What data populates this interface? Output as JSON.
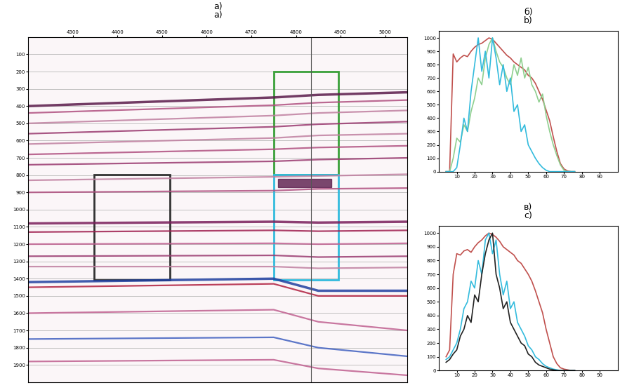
{
  "chart_data": [
    {
      "type": "section",
      "labels": [
        "а)",
        "a)"
      ],
      "xlim": [
        4200,
        5050
      ],
      "xticks": [
        4300,
        4400,
        4500,
        4600,
        4700,
        4800,
        4900,
        5000
      ],
      "ylim": [
        2000,
        0
      ],
      "yticks": [
        100,
        200,
        300,
        400,
        500,
        600,
        700,
        800,
        900,
        1000,
        1100,
        1200,
        1300,
        1400,
        1500,
        1600,
        1700,
        1800,
        1900
      ],
      "grid": true,
      "reflector_x": [
        4200,
        4750,
        4850,
        5050
      ],
      "reflectors": [
        {
          "t": [
            400,
            350,
            335,
            320
          ],
          "color": "#5a1a4a"
        },
        {
          "t": [
            440,
            395,
            380,
            365
          ],
          "color": "#b05080"
        },
        {
          "t": [
            500,
            455,
            440,
            425
          ],
          "color": "#c080a0"
        },
        {
          "t": [
            560,
            520,
            505,
            490
          ],
          "color": "#9a3a70"
        },
        {
          "t": [
            620,
            585,
            570,
            560
          ],
          "color": "#c080a0"
        },
        {
          "t": [
            680,
            650,
            640,
            630
          ],
          "color": "#b05080"
        },
        {
          "t": [
            740,
            720,
            710,
            700
          ],
          "color": "#9a3a70"
        },
        {
          "t": [
            830,
            810,
            805,
            795
          ],
          "color": "#c080a0"
        },
        {
          "t": [
            900,
            890,
            880,
            875
          ],
          "color": "#b05080"
        },
        {
          "t": [
            1080,
            1070,
            1075,
            1070
          ],
          "color": "#7a1f5c"
        },
        {
          "t": [
            1130,
            1120,
            1125,
            1120
          ],
          "color": "#a02050"
        },
        {
          "t": [
            1200,
            1195,
            1200,
            1195
          ],
          "color": "#c06090"
        },
        {
          "t": [
            1270,
            1265,
            1275,
            1270
          ],
          "color": "#9a3a70"
        },
        {
          "t": [
            1330,
            1330,
            1340,
            1335
          ],
          "color": "#c080a0"
        },
        {
          "t": [
            1420,
            1400,
            1470,
            1470
          ],
          "color": "#2040a0"
        },
        {
          "t": [
            1450,
            1430,
            1500,
            1500
          ],
          "color": "#b02040"
        },
        {
          "t": [
            1600,
            1580,
            1650,
            1700
          ],
          "color": "#c06090"
        },
        {
          "t": [
            1750,
            1740,
            1800,
            1850
          ],
          "color": "#4060c0"
        },
        {
          "t": [
            1880,
            1870,
            1920,
            1960
          ],
          "color": "#c06090"
        }
      ],
      "anomaly": {
        "x": [
          4760,
          4880
        ],
        "t": [
          820,
          870
        ],
        "color": "#5a1a4a"
      },
      "marker_line": {
        "x": 4833,
        "color": "#555555"
      },
      "boxes": [
        {
          "x": [
            4348,
            4517
          ],
          "t": [
            798,
            1406
          ],
          "color": "#333333"
        },
        {
          "x": [
            4750,
            4895
          ],
          "t": [
            198,
            798
          ],
          "color": "#3aa03a"
        },
        {
          "x": [
            4750,
            4895
          ],
          "t": [
            798,
            1406
          ],
          "color": "#33bbdd"
        }
      ]
    },
    {
      "type": "line",
      "labels": [
        "б)",
        "b)"
      ],
      "xlim": [
        0,
        100
      ],
      "xticks": [
        10,
        20,
        30,
        40,
        50,
        60,
        70,
        80,
        90
      ],
      "ylim": [
        0,
        1050
      ],
      "yticks": [
        0,
        100,
        200,
        300,
        400,
        500,
        600,
        700,
        800,
        900,
        1000
      ],
      "x": [
        4,
        6,
        8,
        10,
        12,
        14,
        16,
        18,
        20,
        22,
        24,
        26,
        28,
        30,
        32,
        34,
        36,
        38,
        40,
        42,
        44,
        46,
        48,
        50,
        52,
        54,
        56,
        58,
        60,
        62,
        64,
        66,
        68,
        70,
        72,
        74,
        76
      ],
      "series": [
        {
          "color": "#c0504d",
          "values": [
            0,
            0,
            880,
            820,
            850,
            870,
            860,
            900,
            930,
            950,
            960,
            980,
            1000,
            990,
            960,
            930,
            900,
            870,
            850,
            820,
            800,
            780,
            760,
            720,
            700,
            660,
            600,
            540,
            460,
            380,
            260,
            150,
            60,
            20,
            5,
            0,
            0
          ]
        },
        {
          "color": "#8fcf8f",
          "values": [
            0,
            0,
            100,
            250,
            220,
            350,
            300,
            450,
            550,
            700,
            650,
            850,
            950,
            1000,
            900,
            820,
            780,
            700,
            650,
            800,
            720,
            850,
            700,
            780,
            650,
            600,
            520,
            580,
            420,
            300,
            200,
            120,
            50,
            10,
            0,
            0,
            0
          ]
        },
        {
          "color": "#33bbdd",
          "values": [
            0,
            0,
            0,
            30,
            200,
            400,
            300,
            600,
            800,
            1000,
            750,
            900,
            700,
            1000,
            850,
            650,
            800,
            600,
            700,
            450,
            500,
            300,
            350,
            200,
            150,
            100,
            60,
            30,
            10,
            0,
            0,
            0,
            0,
            0,
            0,
            0,
            0
          ]
        }
      ]
    },
    {
      "type": "line",
      "labels": [
        "в)",
        "c)"
      ],
      "xlim": [
        0,
        100
      ],
      "xticks": [
        10,
        20,
        30,
        40,
        50,
        60,
        70,
        80,
        90
      ],
      "ylim": [
        0,
        1050
      ],
      "yticks": [
        0,
        100,
        200,
        300,
        400,
        500,
        600,
        700,
        800,
        900,
        1000
      ],
      "x": [
        4,
        6,
        8,
        10,
        12,
        14,
        16,
        18,
        20,
        22,
        24,
        26,
        28,
        30,
        32,
        34,
        36,
        38,
        40,
        42,
        44,
        46,
        48,
        50,
        52,
        54,
        56,
        58,
        60,
        62,
        64,
        66,
        68,
        70,
        72,
        74,
        76
      ],
      "series": [
        {
          "color": "#c0504d",
          "values": [
            100,
            150,
            700,
            850,
            840,
            870,
            880,
            860,
            900,
            930,
            950,
            980,
            1000,
            990,
            970,
            940,
            900,
            880,
            860,
            840,
            800,
            780,
            740,
            700,
            650,
            580,
            500,
            420,
            300,
            200,
            100,
            50,
            20,
            10,
            5,
            0,
            0
          ]
        },
        {
          "color": "#33bbdd",
          "values": [
            80,
            100,
            150,
            200,
            300,
            450,
            500,
            650,
            600,
            800,
            700,
            950,
            1000,
            850,
            950,
            700,
            550,
            650,
            450,
            500,
            350,
            300,
            250,
            180,
            150,
            100,
            80,
            50,
            30,
            20,
            10,
            5,
            0,
            0,
            0,
            0,
            0
          ]
        },
        {
          "color": "#222222",
          "values": [
            60,
            80,
            120,
            150,
            250,
            300,
            400,
            350,
            550,
            500,
            700,
            850,
            950,
            1000,
            700,
            600,
            450,
            500,
            350,
            300,
            250,
            200,
            180,
            120,
            100,
            60,
            40,
            30,
            20,
            10,
            5,
            0,
            0,
            0,
            0,
            0,
            0
          ]
        }
      ]
    }
  ]
}
